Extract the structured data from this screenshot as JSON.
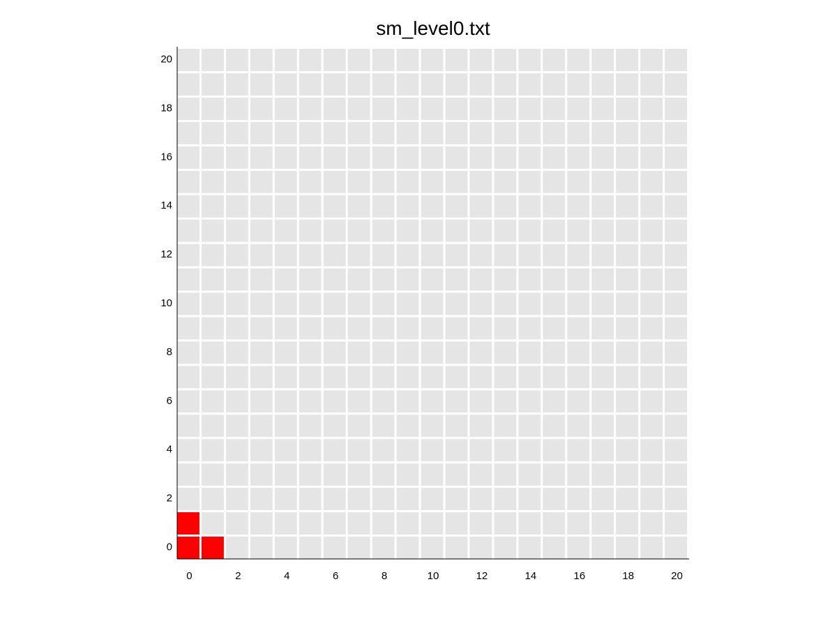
{
  "chart_data": {
    "type": "heatmap",
    "title": "sm_level0.txt",
    "xlabel": "",
    "ylabel": "",
    "xlim": [
      -0.5,
      20.5
    ],
    "ylim": [
      -0.5,
      20.5
    ],
    "x_ticks": [
      "0",
      "2",
      "4",
      "6",
      "8",
      "10",
      "12",
      "14",
      "16",
      "18",
      "20"
    ],
    "y_ticks": [
      "0",
      "2",
      "4",
      "6",
      "8",
      "10",
      "12",
      "14",
      "16",
      "18",
      "20"
    ],
    "grid_size": [
      21,
      21
    ],
    "empty_color": "#e5e5e5",
    "filled_color": "#ff0000",
    "filled_cells": [
      {
        "x": 0,
        "y": 0
      },
      {
        "x": 1,
        "y": 0
      },
      {
        "x": 0,
        "y": 1
      }
    ]
  }
}
